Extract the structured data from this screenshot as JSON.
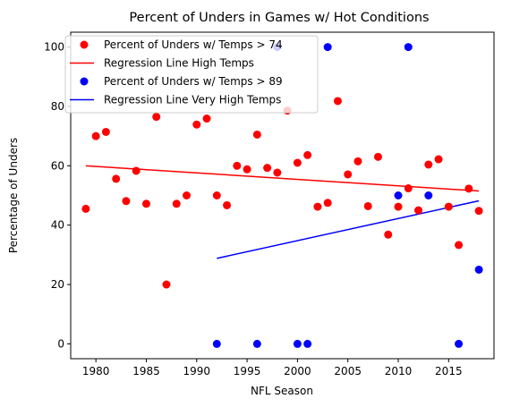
{
  "chart_data": {
    "type": "scatter",
    "title": "Percent of Unders in Games w/ Hot Conditions",
    "xlabel": "NFL Season",
    "ylabel": "Percentage of Unders",
    "xlim": [
      1977.5,
      2019.5
    ],
    "ylim": [
      -5,
      105
    ],
    "xticks": [
      1980,
      1985,
      1990,
      1995,
      2000,
      2005,
      2010,
      2015
    ],
    "yticks": [
      0,
      20,
      40,
      60,
      80,
      100
    ],
    "grid": false,
    "legend_position": "top-left",
    "colors": {
      "red": "#ff0000",
      "blue": "#0000ff"
    },
    "series": [
      {
        "name": "Percent of Unders w/ Temps > 74",
        "kind": "scatter",
        "color": "#ff0000",
        "points": [
          [
            1979,
            45.5
          ],
          [
            1980,
            70
          ],
          [
            1981,
            71.4
          ],
          [
            1982,
            55.6
          ],
          [
            1983,
            48.1
          ],
          [
            1984,
            58.3
          ],
          [
            1985,
            47.2
          ],
          [
            1986,
            76.5
          ],
          [
            1987,
            20
          ],
          [
            1988,
            47.2
          ],
          [
            1989,
            50
          ],
          [
            1990,
            73.9
          ],
          [
            1991,
            75.9
          ],
          [
            1992,
            50
          ],
          [
            1993,
            46.7
          ],
          [
            1994,
            60
          ],
          [
            1995,
            58.8
          ],
          [
            1996,
            70.5
          ],
          [
            1997,
            59.3
          ],
          [
            1998,
            57.7
          ],
          [
            1999,
            78.6
          ],
          [
            2000,
            61
          ],
          [
            2001,
            63.6
          ],
          [
            2002,
            46.2
          ],
          [
            2003,
            47.5
          ],
          [
            2004,
            81.8
          ],
          [
            2005,
            57.1
          ],
          [
            2006,
            61.5
          ],
          [
            2007,
            46.4
          ],
          [
            2008,
            63
          ],
          [
            2009,
            36.8
          ],
          [
            2010,
            46.2
          ],
          [
            2011,
            52.4
          ],
          [
            2012,
            45
          ],
          [
            2013,
            60.4
          ],
          [
            2014,
            62.2
          ],
          [
            2015,
            46.2
          ],
          [
            2016,
            33.3
          ],
          [
            2017,
            52.3
          ],
          [
            2018,
            44.8
          ]
        ]
      },
      {
        "name": "Regression Line High Temps",
        "kind": "line",
        "color": "#ff0000",
        "points": [
          [
            1979,
            60
          ],
          [
            2018,
            51.5
          ]
        ]
      },
      {
        "name": "Percent of Unders w/ Temps > 89",
        "kind": "scatter",
        "color": "#0000ff",
        "points": [
          [
            1992,
            0
          ],
          [
            1996,
            0
          ],
          [
            1998,
            100
          ],
          [
            2000,
            0
          ],
          [
            2001,
            0
          ],
          [
            2003,
            100
          ],
          [
            2010,
            50
          ],
          [
            2011,
            100
          ],
          [
            2013,
            50
          ],
          [
            2016,
            0
          ],
          [
            2018,
            25
          ]
        ]
      },
      {
        "name": "Regression Line Very High Temps",
        "kind": "line",
        "color": "#0000ff",
        "points": [
          [
            1992,
            28.8
          ],
          [
            2018,
            48.2
          ]
        ]
      }
    ]
  }
}
